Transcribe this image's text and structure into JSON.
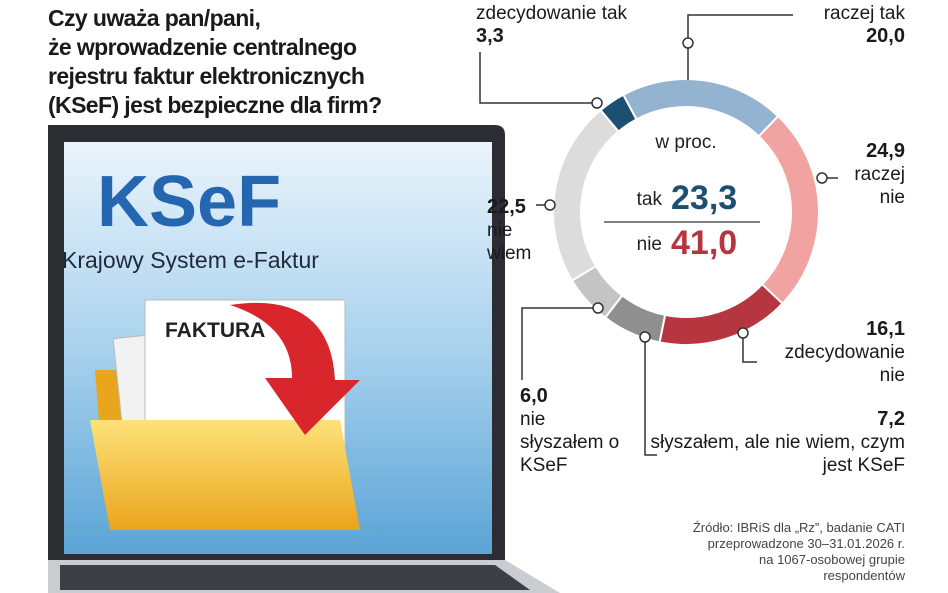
{
  "chart_data": {
    "type": "donut",
    "title": [
      "Czy uważa pan/pani,",
      "że wprowadzenie centralnego",
      "rejestru faktur elektronicznych",
      "(KSeF) jest bezpieczne dla firm?"
    ],
    "unit_label": "w proc.",
    "categories": [
      "zdecydowanie tak",
      "raczej tak",
      "raczej nie",
      "zdecydowanie nie",
      "słyszałem, ale nie wiem, czym jest KSeF",
      "nie słyszałem o KSeF",
      "nie wiem"
    ],
    "values": [
      3.3,
      20.0,
      24.9,
      16.1,
      7.2,
      6.0,
      22.5
    ],
    "value_labels": [
      "3,3",
      "20,0",
      "24,9",
      "16,1",
      "7,2",
      "6,0",
      "22,5"
    ],
    "colors": [
      "#1d4f73",
      "#93b3d1",
      "#f0a3a0",
      "#b5363f",
      "#8f8f8f",
      "#c4c4c4",
      "#dcdcdc"
    ],
    "summary": [
      {
        "label": "tak",
        "value": 23.3,
        "value_label": "23,3",
        "color": "#1d4f73"
      },
      {
        "label": "nie",
        "value": 41.0,
        "value_label": "41,0",
        "color": "#b5363f"
      }
    ],
    "source": [
      "Źródło: IBRiS dla „Rz”, badanie CATI",
      "przeprowadzone 30–31.01.2026 r.",
      "na 1067-osobowej grupie",
      "respondentów"
    ]
  },
  "illustration": {
    "logo": "KSeF",
    "subtitle": "Krajowy System e-Faktur",
    "document": "FAKTURA"
  }
}
